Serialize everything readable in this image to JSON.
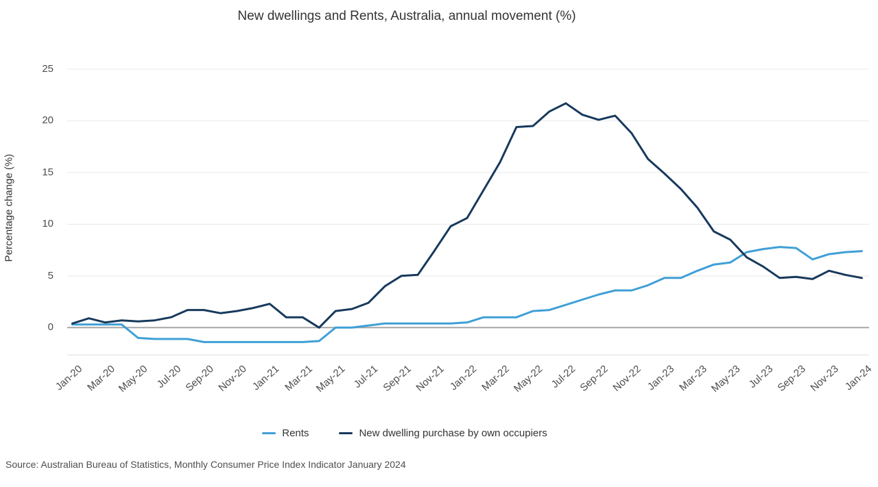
{
  "title": "New dwellings and Rents, Australia, annual movement (%)",
  "y_axis": {
    "title": "Percentage change (%)",
    "ticks": [
      0,
      5,
      10,
      15,
      20,
      25
    ]
  },
  "source": "Source: Australian Bureau of Statistics, Monthly Consumer Price Index Indicator January 2024",
  "legend": [
    {
      "label": "Rents",
      "color": "#3F9FD6"
    },
    {
      "label": "New dwelling purchase by own occupiers",
      "color": "#17395C"
    }
  ],
  "colors": {
    "rents": "#3F9FD6",
    "new_dwellings": "#17395C",
    "zero_line": "#A6A6A6",
    "gridline": "#E8E8E8",
    "title_text": "#333333",
    "tick_text": "#4D4D4D"
  },
  "chart_data": {
    "type": "line",
    "title": "New dwellings and Rents, Australia, annual movement (%)",
    "xlabel": "",
    "ylabel": "Percentage change (%)",
    "ylim": [
      -2.7,
      25.8
    ],
    "y_tick_step": 5,
    "grid": true,
    "zero_baseline": true,
    "legend_position": "bottom-center",
    "x_tick_rotation": -42,
    "x": [
      "Jan-20",
      "Feb-20",
      "Mar-20",
      "Apr-20",
      "May-20",
      "Jun-20",
      "Jul-20",
      "Aug-20",
      "Sep-20",
      "Oct-20",
      "Nov-20",
      "Dec-20",
      "Jan-21",
      "Feb-21",
      "Mar-21",
      "Apr-21",
      "May-21",
      "Jun-21",
      "Jul-21",
      "Aug-21",
      "Sep-21",
      "Oct-21",
      "Nov-21",
      "Dec-21",
      "Jan-22",
      "Feb-22",
      "Mar-22",
      "Apr-22",
      "May-22",
      "Jun-22",
      "Jul-22",
      "Aug-22",
      "Sep-22",
      "Oct-22",
      "Nov-22",
      "Dec-22",
      "Jan-23",
      "Feb-23",
      "Mar-23",
      "Apr-23",
      "May-23",
      "Jun-23",
      "Jul-23",
      "Aug-23",
      "Sep-23",
      "Oct-23",
      "Nov-23",
      "Dec-23",
      "Jan-24"
    ],
    "x_tick_every": 2,
    "series": [
      {
        "name": "Rents",
        "color": "#3F9FD6",
        "values": [
          0.3,
          0.3,
          0.3,
          0.3,
          -1.0,
          -1.1,
          -1.1,
          -1.1,
          -1.4,
          -1.4,
          -1.4,
          -1.4,
          -1.4,
          -1.4,
          -1.4,
          -1.3,
          0.0,
          0.0,
          0.2,
          0.4,
          0.4,
          0.4,
          0.4,
          0.4,
          0.5,
          1.0,
          1.0,
          1.0,
          1.6,
          1.7,
          2.2,
          2.7,
          3.2,
          3.6,
          3.6,
          4.1,
          4.8,
          4.8,
          5.5,
          6.1,
          6.3,
          7.3,
          7.6,
          7.8,
          7.7,
          6.6,
          7.1,
          7.3,
          7.4
        ]
      },
      {
        "name": "New dwelling purchase by own occupiers",
        "color": "#17395C",
        "values": [
          0.4,
          0.9,
          0.5,
          0.7,
          0.6,
          0.7,
          1.0,
          1.7,
          1.7,
          1.4,
          1.6,
          1.9,
          2.3,
          1.0,
          1.0,
          0.0,
          1.6,
          1.8,
          2.4,
          4.0,
          5.0,
          5.1,
          7.4,
          9.8,
          10.6,
          13.3,
          16.0,
          19.4,
          19.5,
          20.9,
          21.7,
          20.6,
          20.1,
          20.5,
          18.8,
          16.3,
          14.9,
          13.4,
          11.6,
          9.3,
          8.5,
          6.8,
          5.9,
          4.8,
          4.9,
          4.7,
          5.5,
          5.1,
          4.8
        ]
      }
    ]
  }
}
